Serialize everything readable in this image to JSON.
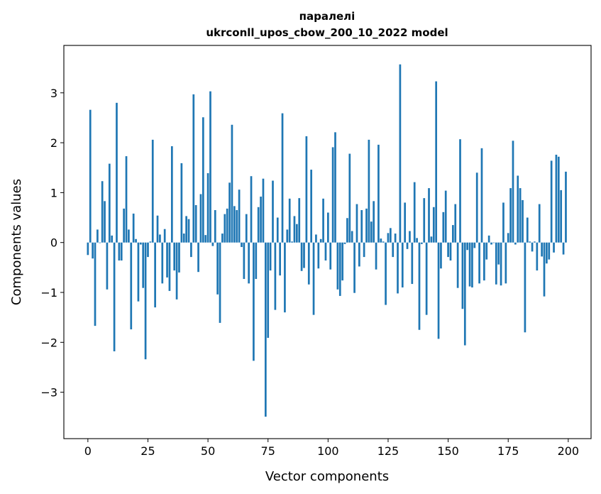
{
  "chart_data": {
    "type": "bar",
    "title": [
      "паралелі",
      "ukrconll_upos_cbow_200_10_2022 model"
    ],
    "xlabel": "Vector components",
    "ylabel": "Components values",
    "xlim": [
      -10,
      209.5
    ],
    "ylim": [
      -3.93,
      3.95
    ],
    "xticks": [
      0,
      25,
      50,
      75,
      100,
      125,
      150,
      175,
      200
    ],
    "yticks": [
      -3,
      -2,
      -1,
      0,
      1,
      2,
      3
    ],
    "xtick_labels": [
      "0",
      "25",
      "50",
      "75",
      "100",
      "125",
      "150",
      "175",
      "200"
    ],
    "ytick_labels": [
      "−3",
      "−2",
      "−1",
      "0",
      "1",
      "2",
      "3"
    ],
    "grid": false,
    "color": "#1f77b4",
    "values": [
      -0.25,
      2.66,
      -0.32,
      -1.67,
      0.26,
      -0.01,
      1.23,
      0.83,
      -0.94,
      1.58,
      0.14,
      -2.18,
      2.8,
      -0.36,
      -0.36,
      0.68,
      1.73,
      0.26,
      -1.74,
      0.58,
      0.07,
      -1.18,
      -0.04,
      -0.91,
      -2.34,
      -0.29,
      0.02,
      2.06,
      -1.3,
      0.54,
      0.16,
      -0.82,
      0.27,
      -0.7,
      -0.97,
      1.93,
      -0.56,
      -1.14,
      -0.6,
      1.59,
      0.18,
      0.53,
      0.47,
      -0.29,
      2.97,
      0.75,
      -0.59,
      0.97,
      2.51,
      0.15,
      1.39,
      3.03,
      -0.07,
      0.65,
      -1.04,
      -1.61,
      0.18,
      0.57,
      0.68,
      1.2,
      2.36,
      0.73,
      0.65,
      1.06,
      -0.09,
      -0.73,
      0.57,
      -0.82,
      1.33,
      -2.37,
      -0.73,
      0.71,
      0.92,
      1.28,
      -3.49,
      -1.91,
      -0.56,
      1.24,
      -1.35,
      0.5,
      -0.66,
      2.59,
      -1.4,
      0.26,
      0.88,
      0.02,
      0.53,
      0.37,
      0.89,
      -0.57,
      -0.51,
      2.13,
      -0.84,
      1.46,
      -1.45,
      0.16,
      -0.52,
      0.07,
      0.88,
      -0.36,
      0.6,
      -0.54,
      1.91,
      2.21,
      -0.94,
      -1.07,
      -0.76,
      -0.03,
      0.49,
      1.78,
      0.23,
      -1.01,
      0.77,
      -0.48,
      0.65,
      -0.29,
      0.68,
      2.06,
      0.42,
      0.83,
      -0.54,
      1.96,
      0.08,
      0.02,
      -1.25,
      0.19,
      0.29,
      -0.29,
      0.18,
      -1.02,
      3.57,
      -0.9,
      0.8,
      -0.13,
      0.23,
      -0.83,
      1.21,
      0.09,
      -1.75,
      -0.03,
      0.89,
      -1.45,
      1.09,
      0.12,
      0.71,
      3.23,
      -1.93,
      -0.52,
      0.61,
      1.04,
      -0.29,
      -0.36,
      0.35,
      0.77,
      -0.91,
      2.07,
      -1.33,
      -2.06,
      -0.15,
      -0.88,
      -0.9,
      -0.11,
      1.4,
      -0.82,
      1.89,
      -0.76,
      -0.34,
      0.14,
      -0.04,
      -0.01,
      -0.84,
      -0.44,
      -0.86,
      0.8,
      -0.82,
      0.19,
      1.09,
      2.04,
      -0.04,
      1.34,
      1.09,
      0.85,
      -1.8,
      0.5,
      0.02,
      -0.18,
      0.02,
      -0.56,
      0.77,
      -0.28,
      -1.08,
      -0.42,
      -0.34,
      1.64,
      -0.2,
      1.76,
      1.72,
      1.05,
      -0.24,
      1.42
    ]
  }
}
